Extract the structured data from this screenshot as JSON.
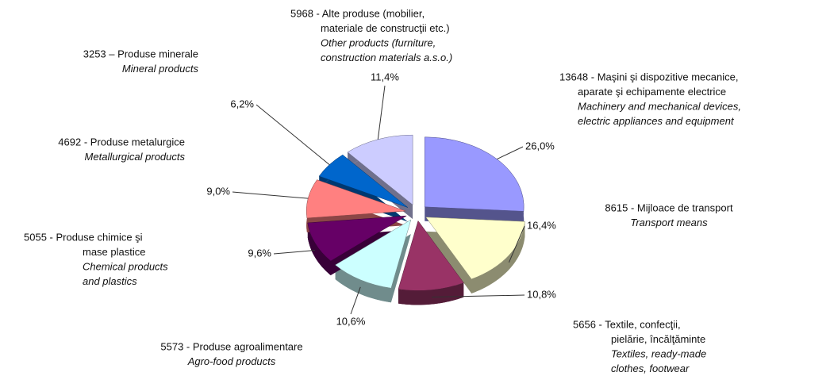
{
  "chart_data": {
    "type": "pie",
    "categories": [
      {
        "ro": [
          "13648 - Maşini şi dispozitive mecanice,",
          "aparate şi echipamente electrice"
        ],
        "en": [
          "Machinery and mechanical devices,",
          "electric appliances and equipment"
        ]
      },
      {
        "ro": [
          "8615 - Mijloace de transport"
        ],
        "en": [
          "Transport means"
        ]
      },
      {
        "ro": [
          "5656 - Textile, confecţii,",
          "pielărie, încălţăminte"
        ],
        "en": [
          "Textiles, ready-made",
          "clothes, footwear"
        ]
      },
      {
        "ro": [
          "5573 - Produse agroalimentare"
        ],
        "en": [
          "Agro-food products"
        ]
      },
      {
        "ro": [
          "5055 - Produse chimice şi",
          "mase plastice"
        ],
        "en": [
          "Chemical products",
          "and plastics"
        ]
      },
      {
        "ro": [
          "4692 - Produse metalurgice"
        ],
        "en": [
          "Metallurgical products"
        ]
      },
      {
        "ro": [
          "3253 – Produse minerale"
        ],
        "en": [
          "Mineral products"
        ]
      },
      {
        "ro": [
          "5968 - Alte produse (mobilier,",
          "materiale de construcţii etc.)"
        ],
        "en": [
          "Other products (furniture,",
          "construction materials a.s.o.)"
        ]
      }
    ],
    "values": [
      26.0,
      16.4,
      10.8,
      10.6,
      9.6,
      9.0,
      6.2,
      11.4
    ],
    "value_labels": [
      "26,0%",
      "16,4%",
      "10,8%",
      "10,6%",
      "9,6%",
      "9,0%",
      "6,2%",
      "11,4%"
    ],
    "colors": [
      "#9999ff",
      "#ffffcc",
      "#993366",
      "#ccffff",
      "#660066",
      "#ff8080",
      "#0066cc",
      "#ccccff"
    ]
  }
}
